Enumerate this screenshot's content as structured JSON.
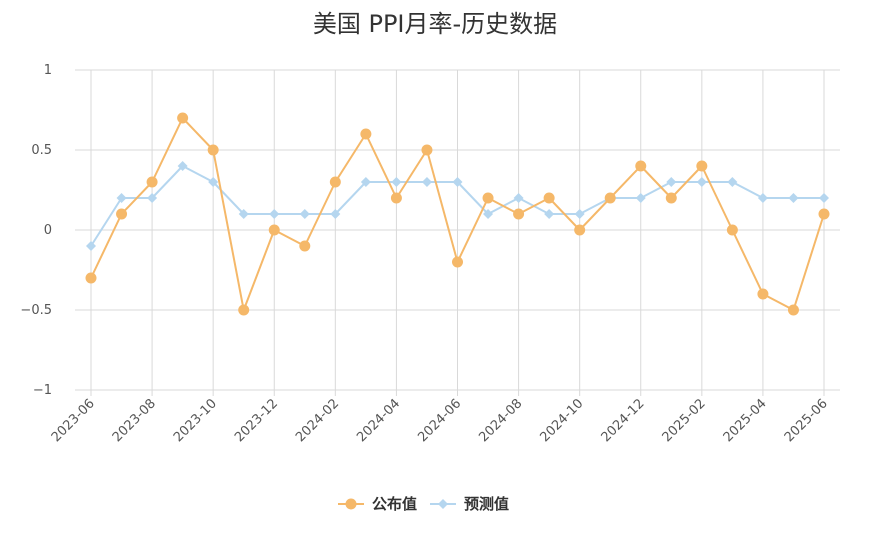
{
  "chart_data": {
    "type": "line",
    "title": "美国 PPI月率-历史数据",
    "x": [
      "2023-06",
      "2023-07",
      "2023-08",
      "2023-09",
      "2023-10",
      "2023-11",
      "2023-12",
      "2024-01",
      "2024-02",
      "2024-03",
      "2024-04",
      "2024-05",
      "2024-06",
      "2024-07",
      "2024-08",
      "2024-09",
      "2024-10",
      "2024-11",
      "2024-12",
      "2025-01",
      "2025-02",
      "2025-03",
      "2025-04",
      "2025-05",
      "2025-06"
    ],
    "x_tick_labels": [
      "2023-06",
      "2023-08",
      "2023-10",
      "2023-12",
      "2024-02",
      "2024-04",
      "2024-06",
      "2024-08",
      "2024-10",
      "2024-12",
      "2025-02",
      "2025-04",
      "2025-06"
    ],
    "y_tick_labels": [
      "1",
      "0.5",
      "0",
      "−0.5",
      "−1"
    ],
    "y_ticks": [
      1,
      0.5,
      0,
      -0.5,
      -1
    ],
    "ylim": [
      -1,
      1
    ],
    "grid": true,
    "legend_position": "bottom-center",
    "series": [
      {
        "name": "公布值",
        "color": "#f5b869",
        "marker": "circle",
        "values": [
          -0.3,
          0.1,
          0.3,
          0.7,
          0.5,
          -0.5,
          0.0,
          -0.1,
          0.3,
          0.6,
          0.2,
          0.5,
          -0.2,
          0.2,
          0.1,
          0.2,
          0.0,
          0.2,
          0.4,
          0.2,
          0.4,
          0.0,
          -0.4,
          -0.5,
          0.1
        ]
      },
      {
        "name": "预测值",
        "color": "#b5d6ef",
        "marker": "diamond",
        "values": [
          -0.1,
          0.2,
          0.2,
          0.4,
          0.3,
          0.1,
          0.1,
          0.1,
          0.1,
          0.3,
          0.3,
          0.3,
          0.3,
          0.1,
          0.2,
          0.1,
          0.1,
          0.2,
          0.2,
          0.3,
          0.3,
          0.3,
          0.2,
          0.2,
          0.2
        ]
      }
    ]
  }
}
